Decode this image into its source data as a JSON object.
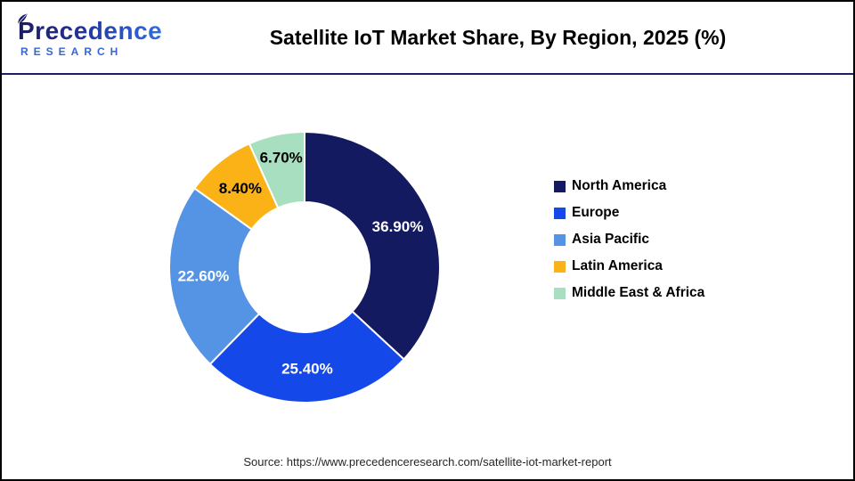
{
  "header": {
    "logo_line1": "Precedence",
    "logo_line2": "RESEARCH",
    "title": "Satellite IoT Market Share, By Region, 2025 (%)"
  },
  "chart_data": {
    "type": "pie",
    "subtype": "donut",
    "title": "Satellite IoT Market Share, By Region, 2025 (%)",
    "units": "%",
    "start_angle_deg": 0,
    "direction": "clockwise",
    "inner_radius_ratio": 0.48,
    "legend_position": "right",
    "slices": [
      {
        "label": "North America",
        "value": 36.9,
        "display": "36.90%",
        "color": "#141a60",
        "label_color": "#ffffff"
      },
      {
        "label": "Europe",
        "value": 25.4,
        "display": "25.40%",
        "color": "#1548e8",
        "label_color": "#ffffff"
      },
      {
        "label": "Asia Pacific",
        "value": 22.6,
        "display": "22.60%",
        "color": "#5594e4",
        "label_color": "#ffffff"
      },
      {
        "label": "Latin America",
        "value": 8.4,
        "display": "8.40%",
        "color": "#fbb216",
        "label_color": "#000000"
      },
      {
        "label": "Middle East & Africa",
        "value": 6.7,
        "display": "6.70%",
        "color": "#a8dfc0",
        "label_color": "#000000"
      }
    ]
  },
  "footer": {
    "source": "Source: https://www.precedenceresearch.com/satellite-iot-market-report"
  }
}
